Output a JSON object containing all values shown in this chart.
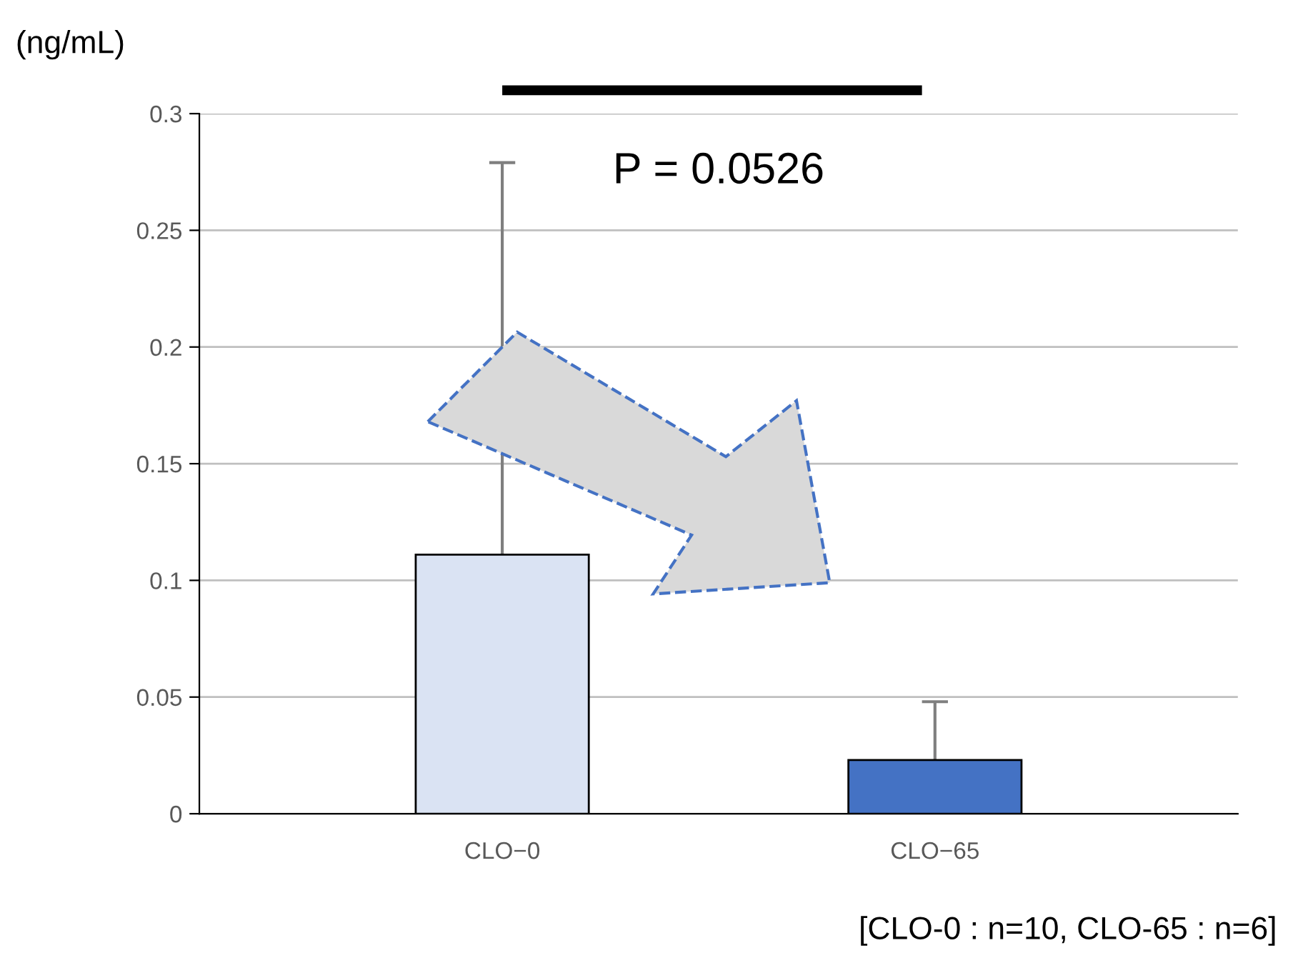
{
  "chart_data": {
    "type": "bar",
    "ylabel": "(ng/mL)",
    "categories": [
      "CLO−0",
      "CLO−65"
    ],
    "values": [
      0.111,
      0.023
    ],
    "colors": [
      "#dae3f3",
      "#4472c4"
    ],
    "errors": [
      [
        0.111,
        0.279
      ],
      [
        0.023,
        0.048
      ]
    ],
    "ylim": [
      0,
      0.3
    ],
    "yticks": [
      0,
      0.05,
      0.1,
      0.15,
      0.2,
      0.25,
      0.3
    ],
    "grid": "y",
    "annotations": [
      "P = 0.0526",
      "[CLO-0 : n=10, CLO-65 : n=6]"
    ]
  }
}
